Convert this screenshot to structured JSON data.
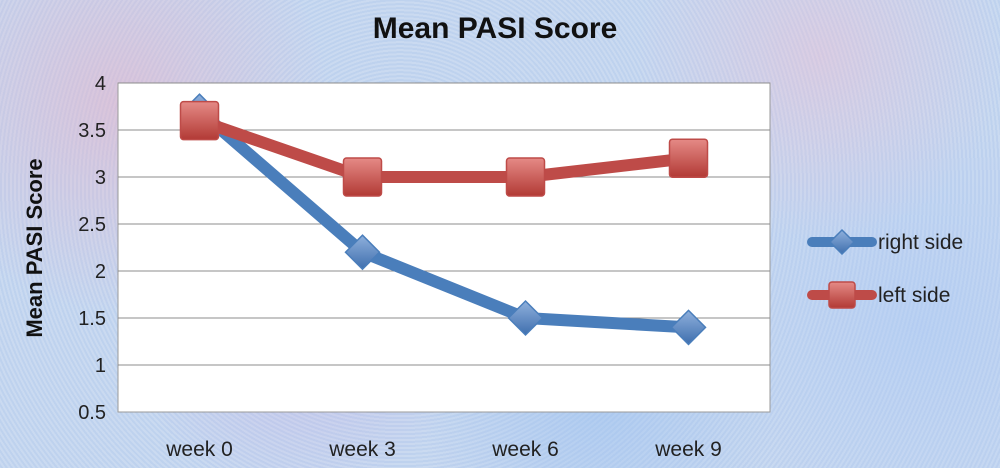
{
  "chart_data": {
    "type": "line",
    "title": "Mean PASI Score",
    "xlabel": "",
    "ylabel": "Mean PASI Score",
    "categories": [
      "week 0",
      "week 3",
      "week 6",
      "week 9"
    ],
    "ylim": [
      0.5,
      4
    ],
    "yticks": [
      "0.5",
      "1",
      "1.5",
      "2",
      "2.5",
      "3",
      "3.5",
      "4"
    ],
    "grid": true,
    "legend_position": "right",
    "series": [
      {
        "name": "right side",
        "values": [
          3.7,
          2.2,
          1.5,
          1.4
        ],
        "color": "#4a7ebb",
        "marker": "diamond"
      },
      {
        "name": "left side",
        "values": [
          3.6,
          3.0,
          3.0,
          3.2
        ],
        "color": "#be4b48",
        "marker": "square"
      }
    ]
  }
}
